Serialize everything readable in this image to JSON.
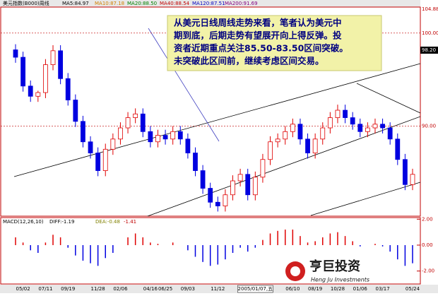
{
  "chart_data": {
    "type": "candlestick",
    "title": "美元指数(B000)周线",
    "indicators": [
      {
        "name": "MA5:84.97",
        "color": "#000000"
      },
      {
        "name": "MA10:87.18",
        "color": "#d08000"
      },
      {
        "name": "MA20:88.50",
        "color": "#008000"
      },
      {
        "name": "MA40:88.54",
        "color": "#c00000"
      },
      {
        "name": "MA120:87.51",
        "color": "#0000c0"
      },
      {
        "name": "MA200:91.69",
        "color": "#800080"
      }
    ],
    "annotation": [
      "从美元日线周线走势来看，笔者认为美元中",
      "期到底，后期走势有望展开向上得反弹。投",
      "资者近期重点关注85.50-83.50区间突破。",
      "未突破此区间前，继续考虑区间交易。"
    ],
    "top_label": "104.88",
    "last_label": "98.20",
    "categories": [
      null,
      "05/02",
      null,
      null,
      "07/11",
      null,
      null,
      "09/19",
      null,
      null,
      null,
      "11/28",
      null,
      null,
      "02/06",
      null,
      null,
      null,
      "04/16",
      null,
      "06/25",
      null,
      null,
      "09/03",
      null,
      null,
      null,
      "11/12",
      null,
      null,
      null,
      null,
      "2005/01/07,五",
      null,
      null,
      null,
      null,
      "06/10",
      null,
      null,
      "08/19",
      null,
      null,
      "10/28",
      null,
      null,
      "01/06",
      null,
      null,
      "03/17",
      null,
      null,
      null,
      "05/24"
    ],
    "open": [
      98.2,
      97.4,
      94.3,
      93.2,
      93.6,
      96.6,
      98.1,
      95.1,
      92.8,
      90.5,
      88.3,
      87.1,
      85.2,
      87.5,
      88.6,
      89.8,
      90.9,
      91.3,
      89.4,
      88.3,
      89.0,
      88.6,
      89.4,
      88.6,
      87.1,
      85.2,
      83.3,
      81.8,
      81.4,
      82.6,
      84.1,
      84.8,
      82.6,
      84.5,
      86.4,
      88.3,
      88.6,
      89.4,
      90.2,
      88.6,
      87.1,
      88.6,
      89.8,
      90.9,
      91.7,
      90.9,
      90.2,
      89.4,
      89.8,
      90.2,
      89.8,
      88.6,
      86.4,
      83.7
    ],
    "high": [
      98.8,
      98.0,
      94.9,
      93.8,
      97.2,
      98.7,
      98.7,
      95.7,
      93.4,
      91.1,
      88.9,
      87.7,
      88.1,
      89.2,
      90.4,
      91.5,
      91.9,
      91.9,
      90.0,
      89.6,
      89.6,
      90.0,
      90.0,
      89.2,
      87.7,
      85.8,
      83.9,
      82.4,
      83.2,
      84.7,
      85.4,
      85.4,
      85.1,
      87.0,
      88.9,
      89.2,
      90.0,
      90.8,
      90.8,
      89.2,
      89.2,
      90.4,
      91.5,
      92.3,
      92.3,
      91.5,
      90.8,
      90.4,
      90.8,
      90.8,
      90.4,
      89.2,
      87.0,
      85.4
    ],
    "low": [
      96.8,
      93.7,
      92.6,
      92.6,
      93.0,
      96.0,
      94.5,
      92.2,
      89.9,
      87.7,
      86.5,
      84.6,
      84.6,
      86.9,
      88.0,
      89.2,
      90.3,
      88.8,
      87.7,
      87.7,
      88.0,
      88.0,
      88.0,
      86.5,
      84.6,
      82.7,
      81.2,
      80.8,
      80.8,
      82.0,
      83.5,
      82.0,
      82.0,
      83.9,
      85.8,
      87.7,
      88.0,
      88.8,
      88.0,
      86.5,
      86.5,
      88.0,
      89.2,
      90.3,
      90.3,
      89.6,
      88.8,
      88.8,
      89.2,
      89.2,
      88.0,
      85.8,
      83.1,
      83.1
    ],
    "close": [
      97.4,
      94.3,
      93.2,
      93.6,
      96.6,
      98.1,
      95.1,
      92.8,
      90.5,
      88.3,
      87.1,
      85.2,
      87.5,
      88.6,
      89.8,
      90.9,
      91.3,
      89.4,
      88.3,
      89.0,
      88.6,
      89.4,
      88.6,
      87.1,
      85.2,
      83.3,
      81.8,
      81.4,
      82.6,
      84.1,
      84.8,
      82.6,
      84.5,
      86.4,
      88.3,
      88.6,
      89.4,
      90.2,
      88.6,
      87.1,
      88.6,
      89.8,
      90.9,
      91.7,
      90.9,
      90.2,
      89.4,
      89.8,
      90.2,
      89.8,
      88.6,
      86.4,
      83.7,
      84.8
    ],
    "ylim": [
      80.3,
      102.8
    ],
    "yticks": [
      {
        "value": 90,
        "label": "90.00"
      },
      {
        "value": 100,
        "label": "100.00"
      }
    ],
    "up_color": "#e00000",
    "down_color": "#0000e0",
    "macd": {
      "title": "MACD(12,26,10)",
      "diff": "DIFF:-1.19",
      "dea": "DEA:-0.48",
      "macd": "-1.41",
      "ylim": [
        -3.0,
        2.125
      ],
      "yticks": [
        {
          "value": 2,
          "label": "2.00"
        },
        {
          "value": 0,
          "label": "0.00"
        },
        {
          "value": -2,
          "label": "-2.00"
        }
      ],
      "values": [
        0.6,
        0.2,
        -0.4,
        -0.6,
        0.2,
        0.8,
        0.6,
        -0.2,
        -0.8,
        -1.2,
        -1.4,
        -1.6,
        -1.0,
        -0.6,
        0.0,
        0.6,
        0.9,
        0.6,
        0.2,
        0.1,
        0.0,
        0.2,
        0.0,
        -0.4,
        -0.9,
        -1.3,
        -1.6,
        -1.5,
        -1.1,
        -0.6,
        -0.2,
        -0.5,
        -0.2,
        0.4,
        0.9,
        1.1,
        1.2,
        1.2,
        0.7,
        0.2,
        0.3,
        0.6,
        0.9,
        1.0,
        0.7,
        0.3,
        -0.1,
        0.0,
        0.1,
        -0.1,
        -0.5,
        -1.1,
        -1.6,
        -1.4
      ]
    },
    "logo": {
      "name": "亨巨投资",
      "sub": "Heng Ju Investments"
    }
  }
}
